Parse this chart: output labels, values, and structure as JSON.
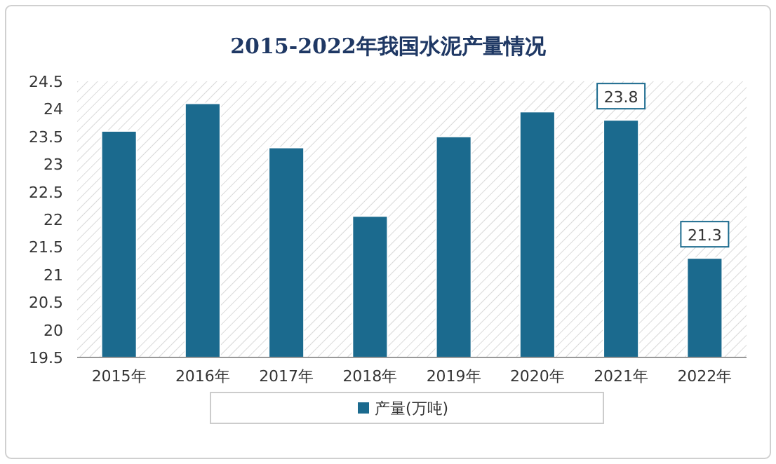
{
  "chart_data": {
    "type": "bar",
    "title": "2015-2022年我国水泥产量情况",
    "categories": [
      "2015年",
      "2016年",
      "2017年",
      "2018年",
      "2019年",
      "2020年",
      "2021年",
      "2022年"
    ],
    "series": [
      {
        "name": "产量(万吨)",
        "color": "#1b6a8e",
        "values": [
          23.6,
          24.1,
          23.3,
          22.06,
          23.5,
          23.95,
          23.8,
          21.3
        ],
        "value_labels": [
          null,
          null,
          null,
          null,
          null,
          null,
          "23.8",
          "21.3"
        ]
      }
    ],
    "ylim": [
      19.5,
      24.5
    ],
    "yticks": [
      19.5,
      20,
      20.5,
      21,
      21.5,
      22,
      22.5,
      23,
      23.5,
      24,
      24.5
    ],
    "legend": "bottom"
  }
}
